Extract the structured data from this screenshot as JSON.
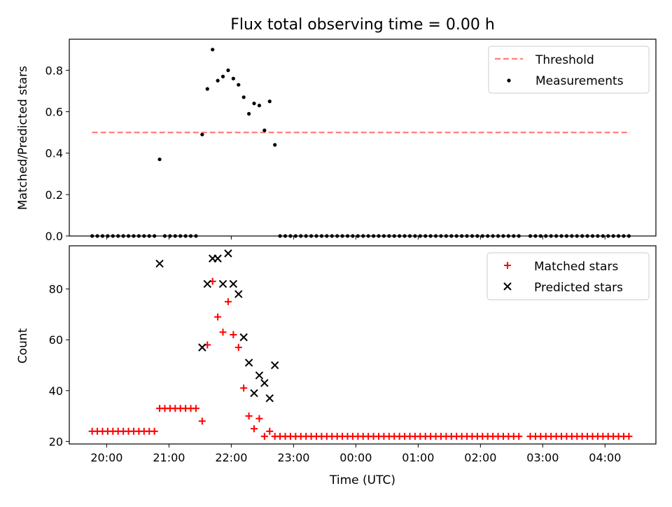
{
  "chart_data": [
    {
      "type": "scatter",
      "title": "Flux total observing time = 0.00 h",
      "xlabel": "",
      "ylabel": "Matched/Predicted stars",
      "ylim": [
        0.0,
        0.95
      ],
      "yticks": [
        0.0,
        0.2,
        0.4,
        0.6,
        0.8
      ],
      "ytick_labels": [
        "0.0",
        "0.2",
        "0.4",
        "0.6",
        "0.8"
      ],
      "legend_position": "top-right",
      "series": [
        {
          "name": "Threshold",
          "kind": "dashed-line",
          "color": "#ff7f7f",
          "y": 0.5,
          "x": [
            "19:46",
            "04:24"
          ]
        },
        {
          "name": "Measurements",
          "kind": "scatter",
          "color": "#000000",
          "points": [
            [
              "19:46",
              0
            ],
            [
              "19:51",
              0
            ],
            [
              "19:56",
              0
            ],
            [
              "20:01",
              0
            ],
            [
              "20:06",
              0
            ],
            [
              "20:11",
              0
            ],
            [
              "20:16",
              0
            ],
            [
              "20:21",
              0
            ],
            [
              "20:26",
              0
            ],
            [
              "20:31",
              0
            ],
            [
              "20:36",
              0
            ],
            [
              "20:41",
              0
            ],
            [
              "20:46",
              0
            ],
            [
              "20:51",
              0.37
            ],
            [
              "20:56",
              0
            ],
            [
              "21:01",
              0
            ],
            [
              "21:06",
              0
            ],
            [
              "21:11",
              0
            ],
            [
              "21:16",
              0
            ],
            [
              "21:21",
              0
            ],
            [
              "21:26",
              0
            ],
            [
              "21:32",
              0.49
            ],
            [
              "21:37",
              0.71
            ],
            [
              "21:42",
              0.9
            ],
            [
              "21:47",
              0.75
            ],
            [
              "21:52",
              0.77
            ],
            [
              "21:57",
              0.8
            ],
            [
              "22:02",
              0.76
            ],
            [
              "22:07",
              0.73
            ],
            [
              "22:12",
              0.67
            ],
            [
              "22:17",
              0.59
            ],
            [
              "22:22",
              0.64
            ],
            [
              "22:27",
              0.63
            ],
            [
              "22:32",
              0.51
            ],
            [
              "22:37",
              0.65
            ],
            [
              "22:42",
              0.44
            ],
            [
              "22:47",
              0
            ],
            [
              "22:52",
              0
            ],
            [
              "22:57",
              0
            ],
            [
              "23:02",
              0
            ],
            [
              "23:07",
              0
            ],
            [
              "23:12",
              0
            ],
            [
              "23:17",
              0
            ],
            [
              "23:22",
              0
            ],
            [
              "23:27",
              0
            ],
            [
              "23:32",
              0
            ],
            [
              "23:37",
              0
            ],
            [
              "23:42",
              0
            ],
            [
              "23:47",
              0
            ],
            [
              "23:52",
              0
            ],
            [
              "23:57",
              0
            ],
            [
              "00:02",
              0
            ],
            [
              "00:07",
              0
            ],
            [
              "00:12",
              0
            ],
            [
              "00:17",
              0
            ],
            [
              "00:22",
              0
            ],
            [
              "00:27",
              0
            ],
            [
              "00:32",
              0
            ],
            [
              "00:37",
              0
            ],
            [
              "00:42",
              0
            ],
            [
              "00:47",
              0
            ],
            [
              "00:52",
              0
            ],
            [
              "00:57",
              0
            ],
            [
              "01:02",
              0
            ],
            [
              "01:07",
              0
            ],
            [
              "01:12",
              0
            ],
            [
              "01:17",
              0
            ],
            [
              "01:22",
              0
            ],
            [
              "01:27",
              0
            ],
            [
              "01:32",
              0
            ],
            [
              "01:37",
              0
            ],
            [
              "01:42",
              0
            ],
            [
              "01:47",
              0
            ],
            [
              "01:52",
              0
            ],
            [
              "01:57",
              0
            ],
            [
              "02:02",
              0
            ],
            [
              "02:07",
              0
            ],
            [
              "02:12",
              0
            ],
            [
              "02:17",
              0
            ],
            [
              "02:22",
              0
            ],
            [
              "02:27",
              0
            ],
            [
              "02:32",
              0
            ],
            [
              "02:37",
              0
            ],
            [
              "02:48",
              0
            ],
            [
              "02:53",
              0
            ],
            [
              "02:58",
              0
            ],
            [
              "03:03",
              0
            ],
            [
              "03:08",
              0
            ],
            [
              "03:13",
              0
            ],
            [
              "03:18",
              0
            ],
            [
              "03:23",
              0
            ],
            [
              "03:28",
              0
            ],
            [
              "03:33",
              0
            ],
            [
              "03:38",
              0
            ],
            [
              "03:43",
              0
            ],
            [
              "03:48",
              0
            ],
            [
              "03:53",
              0
            ],
            [
              "03:58",
              0
            ],
            [
              "04:03",
              0
            ],
            [
              "04:08",
              0
            ],
            [
              "04:13",
              0
            ],
            [
              "04:18",
              0
            ],
            [
              "04:23",
              0
            ]
          ]
        }
      ]
    },
    {
      "type": "scatter",
      "title": "",
      "xlabel": "Time (UTC)",
      "ylabel": "Count",
      "ylim": [
        19,
        97
      ],
      "yticks": [
        20,
        40,
        60,
        80
      ],
      "ytick_labels": [
        "20",
        "40",
        "60",
        "80"
      ],
      "xlim": [
        "19:24",
        "04:49"
      ],
      "xticks": [
        "20:00",
        "21:00",
        "22:00",
        "23:00",
        "00:00",
        "01:00",
        "02:00",
        "03:00",
        "04:00"
      ],
      "xtick_labels": [
        "20:00",
        "21:00",
        "22:00",
        "23:00",
        "00:00",
        "01:00",
        "02:00",
        "03:00",
        "04:00"
      ],
      "legend_position": "top-right",
      "series": [
        {
          "name": "Matched stars",
          "marker": "plus",
          "color": "#ff0000",
          "points": [
            [
              "19:46",
              24
            ],
            [
              "19:51",
              24
            ],
            [
              "19:56",
              24
            ],
            [
              "20:01",
              24
            ],
            [
              "20:06",
              24
            ],
            [
              "20:11",
              24
            ],
            [
              "20:16",
              24
            ],
            [
              "20:21",
              24
            ],
            [
              "20:26",
              24
            ],
            [
              "20:31",
              24
            ],
            [
              "20:36",
              24
            ],
            [
              "20:41",
              24
            ],
            [
              "20:46",
              24
            ],
            [
              "20:51",
              33
            ],
            [
              "20:56",
              33
            ],
            [
              "21:01",
              33
            ],
            [
              "21:06",
              33
            ],
            [
              "21:11",
              33
            ],
            [
              "21:16",
              33
            ],
            [
              "21:21",
              33
            ],
            [
              "21:26",
              33
            ],
            [
              "21:32",
              28
            ],
            [
              "21:37",
              58
            ],
            [
              "21:42",
              83
            ],
            [
              "21:47",
              69
            ],
            [
              "21:52",
              63
            ],
            [
              "21:57",
              75
            ],
            [
              "22:02",
              62
            ],
            [
              "22:07",
              57
            ],
            [
              "22:12",
              41
            ],
            [
              "22:17",
              30
            ],
            [
              "22:22",
              25
            ],
            [
              "22:27",
              29
            ],
            [
              "22:32",
              22
            ],
            [
              "22:37",
              24
            ],
            [
              "22:42",
              22
            ],
            [
              "22:47",
              22
            ],
            [
              "22:52",
              22
            ],
            [
              "22:57",
              22
            ],
            [
              "23:02",
              22
            ],
            [
              "23:07",
              22
            ],
            [
              "23:12",
              22
            ],
            [
              "23:17",
              22
            ],
            [
              "23:22",
              22
            ],
            [
              "23:27",
              22
            ],
            [
              "23:32",
              22
            ],
            [
              "23:37",
              22
            ],
            [
              "23:42",
              22
            ],
            [
              "23:47",
              22
            ],
            [
              "23:52",
              22
            ],
            [
              "23:57",
              22
            ],
            [
              "00:02",
              22
            ],
            [
              "00:07",
              22
            ],
            [
              "00:12",
              22
            ],
            [
              "00:17",
              22
            ],
            [
              "00:22",
              22
            ],
            [
              "00:27",
              22
            ],
            [
              "00:32",
              22
            ],
            [
              "00:37",
              22
            ],
            [
              "00:42",
              22
            ],
            [
              "00:47",
              22
            ],
            [
              "00:52",
              22
            ],
            [
              "00:57",
              22
            ],
            [
              "01:02",
              22
            ],
            [
              "01:07",
              22
            ],
            [
              "01:12",
              22
            ],
            [
              "01:17",
              22
            ],
            [
              "01:22",
              22
            ],
            [
              "01:27",
              22
            ],
            [
              "01:32",
              22
            ],
            [
              "01:37",
              22
            ],
            [
              "01:42",
              22
            ],
            [
              "01:47",
              22
            ],
            [
              "01:52",
              22
            ],
            [
              "01:57",
              22
            ],
            [
              "02:02",
              22
            ],
            [
              "02:07",
              22
            ],
            [
              "02:12",
              22
            ],
            [
              "02:17",
              22
            ],
            [
              "02:22",
              22
            ],
            [
              "02:27",
              22
            ],
            [
              "02:32",
              22
            ],
            [
              "02:37",
              22
            ],
            [
              "02:48",
              22
            ],
            [
              "02:53",
              22
            ],
            [
              "02:58",
              22
            ],
            [
              "03:03",
              22
            ],
            [
              "03:08",
              22
            ],
            [
              "03:13",
              22
            ],
            [
              "03:18",
              22
            ],
            [
              "03:23",
              22
            ],
            [
              "03:28",
              22
            ],
            [
              "03:33",
              22
            ],
            [
              "03:38",
              22
            ],
            [
              "03:43",
              22
            ],
            [
              "03:48",
              22
            ],
            [
              "03:53",
              22
            ],
            [
              "03:58",
              22
            ],
            [
              "04:03",
              22
            ],
            [
              "04:08",
              22
            ],
            [
              "04:13",
              22
            ],
            [
              "04:18",
              22
            ],
            [
              "04:23",
              22
            ]
          ]
        },
        {
          "name": "Predicted stars",
          "marker": "x",
          "color": "#000000",
          "points": [
            [
              "20:51",
              90
            ],
            [
              "21:32",
              57
            ],
            [
              "21:37",
              82
            ],
            [
              "21:42",
              92
            ],
            [
              "21:47",
              92
            ],
            [
              "21:52",
              82
            ],
            [
              "21:57",
              94
            ],
            [
              "22:02",
              82
            ],
            [
              "22:07",
              78
            ],
            [
              "22:12",
              61
            ],
            [
              "22:17",
              51
            ],
            [
              "22:22",
              39
            ],
            [
              "22:27",
              46
            ],
            [
              "22:32",
              43
            ],
            [
              "22:37",
              37
            ],
            [
              "22:42",
              50
            ]
          ]
        }
      ]
    }
  ]
}
